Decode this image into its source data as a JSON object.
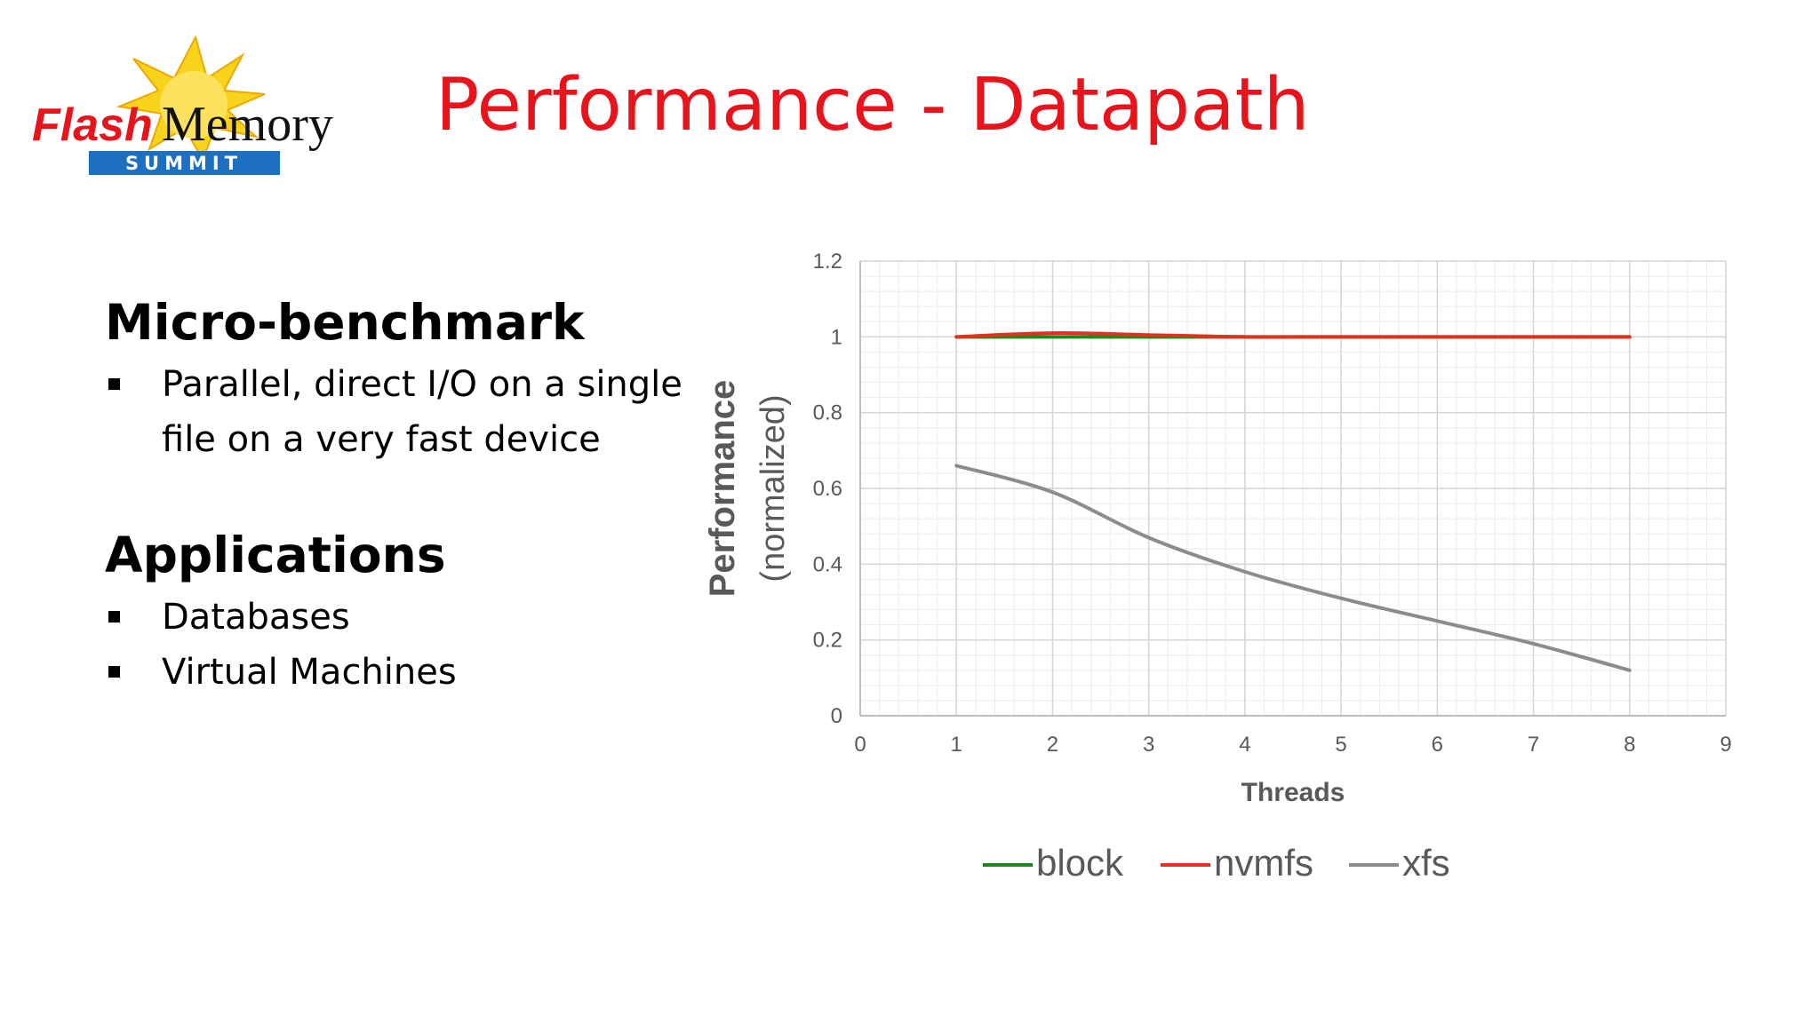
{
  "logo": {
    "word1": "Flash",
    "word2": "Memory",
    "word3": "SUMMIT"
  },
  "slide": {
    "title": "Performance - Datapath"
  },
  "sections": [
    {
      "heading": "Micro-benchmark",
      "bullets": [
        "Parallel, direct I/O on a single file on a very fast device"
      ]
    },
    {
      "heading": "Applications",
      "bullets": [
        "Databases",
        "Virtual Machines"
      ]
    }
  ],
  "chart_data": {
    "type": "line",
    "title": "",
    "xlabel": "Threads",
    "ylabel_bold": "Performance",
    "ylabel_light": "(normalized)",
    "xlim": [
      0,
      9
    ],
    "ylim": [
      0,
      1.2
    ],
    "xticks": [
      "0",
      "1",
      "2",
      "3",
      "4",
      "5",
      "6",
      "7",
      "8",
      "9"
    ],
    "yticks": [
      "0",
      "0.2",
      "0.4",
      "0.6",
      "0.8",
      "1",
      "1.2"
    ],
    "grid": true,
    "legend_position": "bottom",
    "x": [
      1,
      2,
      3,
      4,
      5,
      6,
      7,
      8
    ],
    "series": [
      {
        "name": "block",
        "color": "#1a8a1a",
        "values": [
          1.0,
          1.0,
          1.0,
          1.0,
          1.0,
          1.0,
          1.0,
          1.0
        ]
      },
      {
        "name": "nvmfs",
        "color": "#e0321e",
        "values": [
          1.0,
          1.01,
          1.005,
          1.0,
          1.0,
          1.0,
          1.0,
          1.0
        ]
      },
      {
        "name": "xfs",
        "color": "#8c8c8c",
        "values": [
          0.66,
          0.59,
          0.47,
          0.38,
          0.31,
          0.25,
          0.19,
          0.12
        ]
      }
    ]
  }
}
